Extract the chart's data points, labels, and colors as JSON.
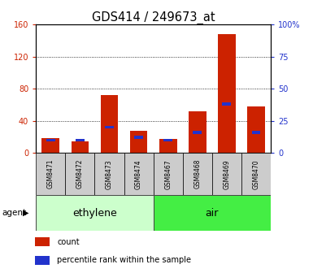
{
  "title": "GDS414 / 249673_at",
  "samples": [
    "GSM8471",
    "GSM8472",
    "GSM8473",
    "GSM8474",
    "GSM8467",
    "GSM8468",
    "GSM8469",
    "GSM8470"
  ],
  "groups": [
    {
      "label": "ethylene",
      "indices": [
        0,
        1,
        2,
        3
      ],
      "color": "#ccffcc"
    },
    {
      "label": "air",
      "indices": [
        4,
        5,
        6,
        7
      ],
      "color": "#44ee44"
    }
  ],
  "count_values": [
    18,
    14,
    72,
    28,
    17,
    52,
    148,
    58
  ],
  "percentile_values": [
    10,
    10,
    20,
    12,
    10,
    16,
    38,
    16
  ],
  "count_color": "#cc2200",
  "percentile_color": "#2233cc",
  "ylim_left": [
    0,
    160
  ],
  "ylim_right": [
    0,
    100
  ],
  "yticks_left": [
    0,
    40,
    80,
    120,
    160
  ],
  "yticks_right": [
    0,
    25,
    50,
    75,
    100
  ],
  "ytick_labels_left": [
    "0",
    "40",
    "80",
    "120",
    "160"
  ],
  "ytick_labels_right": [
    "0",
    "25",
    "50",
    "75",
    "100%"
  ],
  "agent_label": "agent",
  "legend_count": "count",
  "legend_percentile": "percentile rank within the sample",
  "bar_width": 0.6,
  "tick_fontsize": 7,
  "title_fontsize": 10.5,
  "sample_fontsize": 5.5,
  "group_fontsize": 9,
  "legend_fontsize": 7
}
